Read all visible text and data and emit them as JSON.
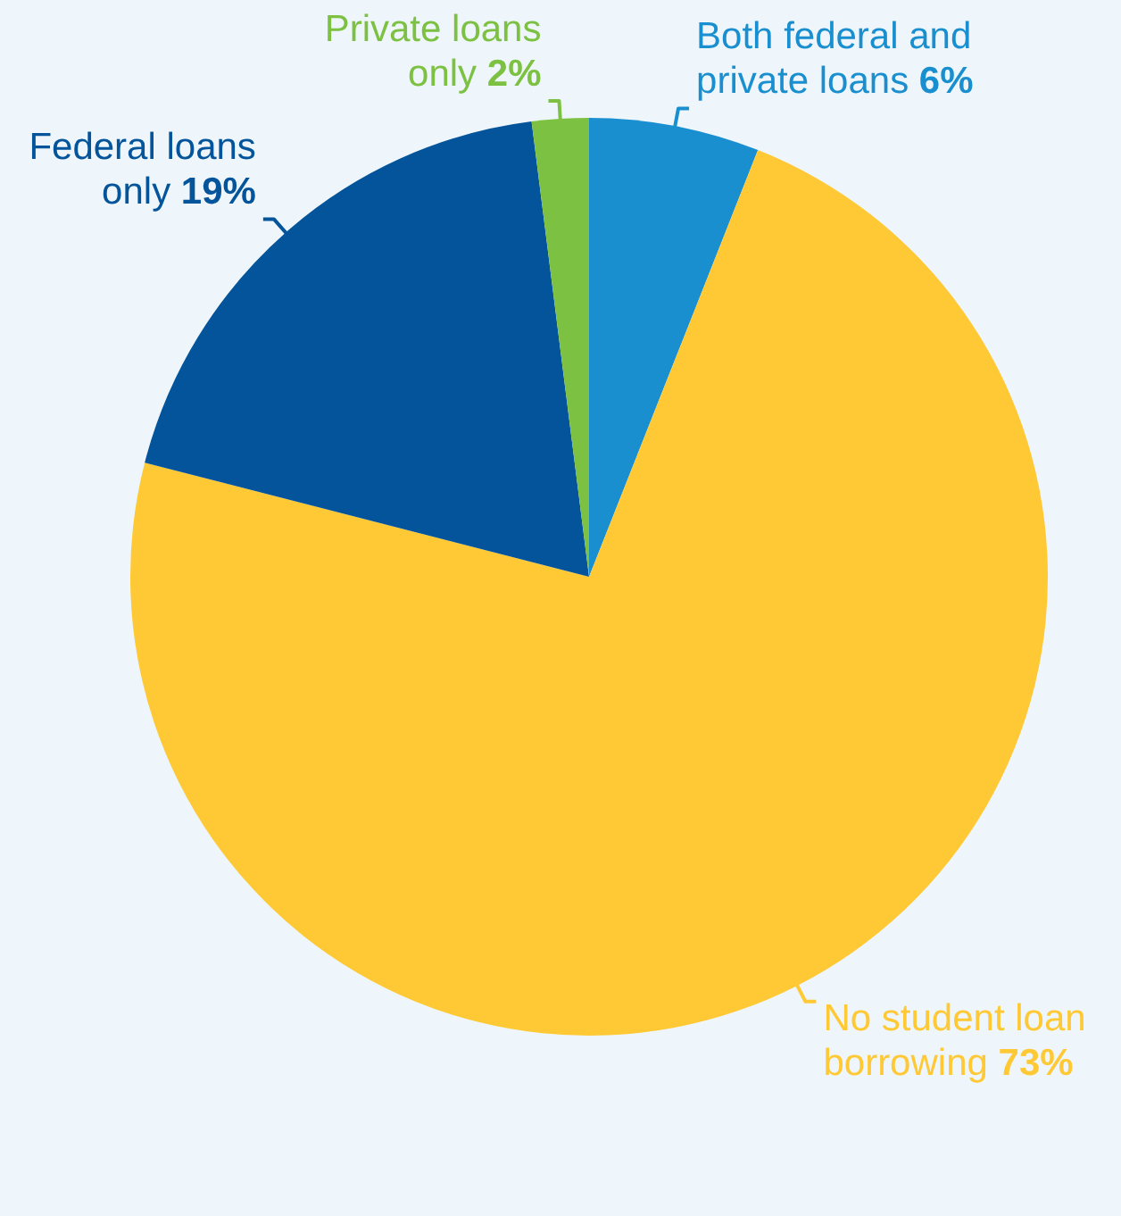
{
  "chart_data": {
    "type": "pie",
    "categories": [
      "Both federal and private loans",
      "No student loan borrowing",
      "Federal loans only",
      "Private loans only"
    ],
    "values": [
      6,
      73,
      19,
      2
    ],
    "colors": [
      "#1a8fd0",
      "#fec935",
      "#03549a",
      "#7dc143"
    ],
    "value_labels": [
      "6%",
      "73%",
      "19%",
      "2%"
    ],
    "legend": false
  }
}
